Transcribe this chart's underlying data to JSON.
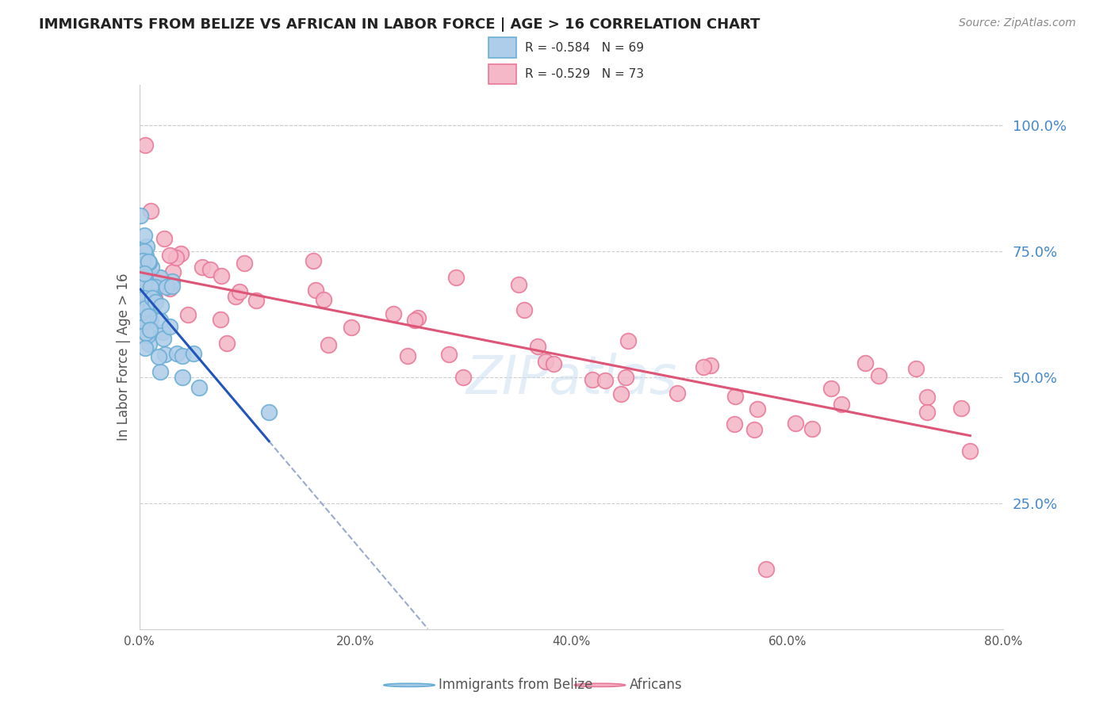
{
  "title": "IMMIGRANTS FROM BELIZE VS AFRICAN IN LABOR FORCE | AGE > 16 CORRELATION CHART",
  "source_text": "Source: ZipAtlas.com",
  "ylabel": "In Labor Force | Age > 16",
  "right_ytick_labels": [
    "100.0%",
    "75.0%",
    "50.0%",
    "25.0%"
  ],
  "right_ytick_values": [
    1.0,
    0.75,
    0.5,
    0.25
  ],
  "xlim": [
    0.0,
    0.8
  ],
  "ylim": [
    0.0,
    1.08
  ],
  "xtick_labels": [
    "0.0%",
    "20.0%",
    "40.0%",
    "60.0%",
    "80.0%"
  ],
  "xtick_values": [
    0.0,
    0.2,
    0.4,
    0.6,
    0.8
  ],
  "legend_label1": "Immigrants from Belize",
  "legend_label2": "Africans",
  "belize_edge_color": "#6baed6",
  "belize_face_color": "#aecde8",
  "african_edge_color": "#e87898",
  "african_face_color": "#f4b8c8",
  "trendline_belize_color": "#2255bb",
  "trendline_african_color": "#dd5577",
  "dashed_extension_color": "#99aacc",
  "watermark_color": "#c8ddf0",
  "watermark_text": "ZIPatlas",
  "grid_color": "#cccccc",
  "title_color": "#222222",
  "source_color": "#888888",
  "ylabel_color": "#555555",
  "tick_label_color": "#555555",
  "right_tick_color": "#4488cc",
  "legend_text_color": "#333333",
  "bottom_legend_color": "#555555"
}
